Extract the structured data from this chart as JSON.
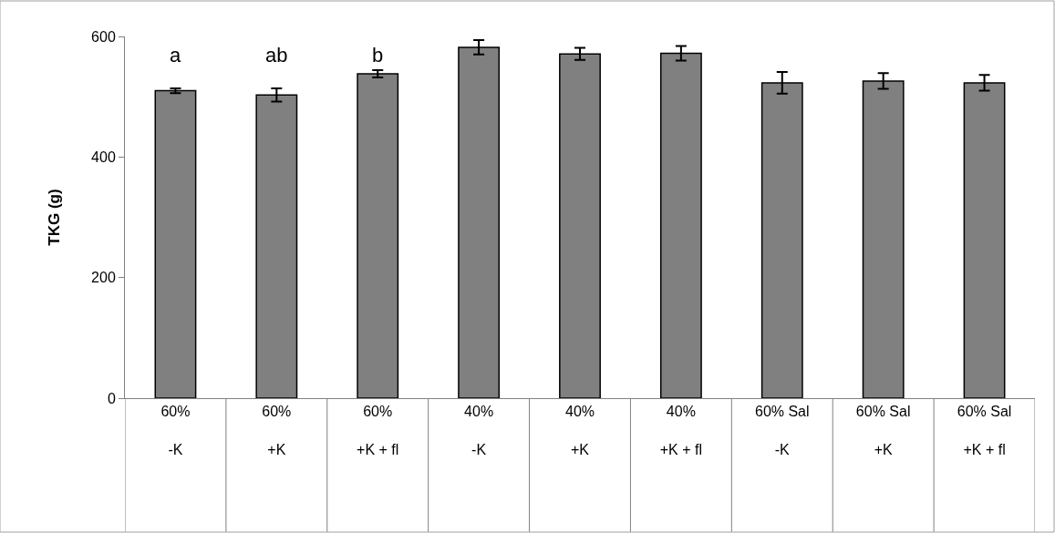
{
  "chart_data": {
    "type": "bar",
    "ylabel": "TKG (g)",
    "categories": [
      "60%\n-K",
      "60%\n+K",
      "60%\n+K + fl",
      "40%\n-K",
      "40%\n+K",
      "40%\n+K + fl",
      "60% Sal\n-K",
      "60% Sal\n+K",
      "60% Sal\n+K + fl"
    ],
    "values": [
      510,
      503,
      538,
      582,
      571,
      572,
      523,
      526,
      523
    ],
    "errors": [
      4,
      11,
      6,
      12,
      10,
      12,
      18,
      13,
      13
    ],
    "color": "#808080",
    "ylim": [
      0,
      600
    ],
    "yticks": [
      0,
      200,
      400,
      600
    ],
    "annotations": [
      "a",
      "ab",
      "b"
    ]
  }
}
